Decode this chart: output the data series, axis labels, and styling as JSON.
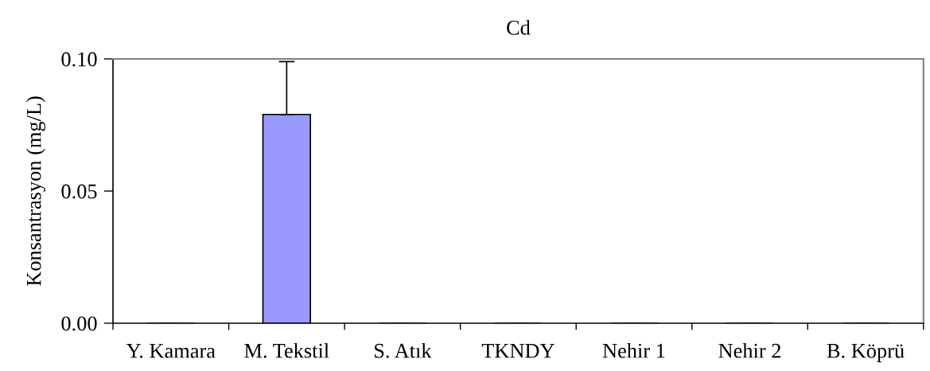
{
  "chart_data": {
    "type": "bar",
    "title": "Cd",
    "ylabel": "Konsantrasyon (mg/L)",
    "categories": [
      "Y. Kamara",
      "M. Tekstil",
      "S. Atık",
      "TKNDY",
      "Nehir 1",
      "Nehir 2",
      "B. Köprü"
    ],
    "values": [
      0,
      0.079,
      0,
      0,
      0,
      0,
      0
    ],
    "errors": [
      0,
      [
        0.079,
        0.099
      ],
      0,
      0,
      0,
      0,
      0
    ],
    "color": "#9999ff",
    "ylim": [
      0,
      0.1
    ],
    "yticks": [
      {
        "value": 0,
        "label": "0.00"
      },
      {
        "value": 0.05,
        "label": "0.05"
      },
      {
        "value": 0.1,
        "label": "0.10"
      }
    ],
    "grid": false,
    "legend": false
  }
}
